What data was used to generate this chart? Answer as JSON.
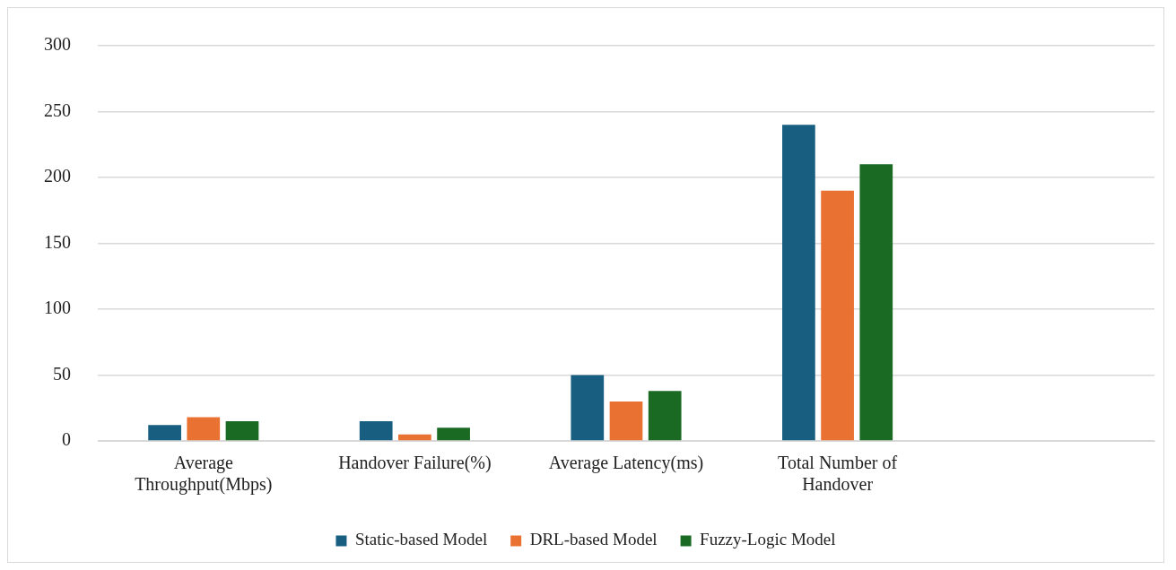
{
  "chart_data": {
    "type": "bar",
    "categories": [
      "Average\nThroughput(Mbps)",
      "Handover Failure(%)",
      "Average Latency(ms)",
      "Total Number of\nHandover",
      null
    ],
    "series": [
      {
        "name": "Static-based Model",
        "color": "#175e81",
        "values": [
          12,
          15,
          50,
          240,
          null
        ]
      },
      {
        "name": "DRL-based Model",
        "color": "#e97132",
        "values": [
          18,
          5,
          30,
          190,
          null
        ]
      },
      {
        "name": "Fuzzy-Logic Model",
        "color": "#1b6a23",
        "values": [
          15,
          10,
          38,
          210,
          null
        ]
      }
    ],
    "ylim": [
      0,
      300
    ],
    "yticks": [
      0,
      50,
      100,
      150,
      200,
      250,
      300
    ],
    "grid": "y",
    "legend": "bottom"
  }
}
